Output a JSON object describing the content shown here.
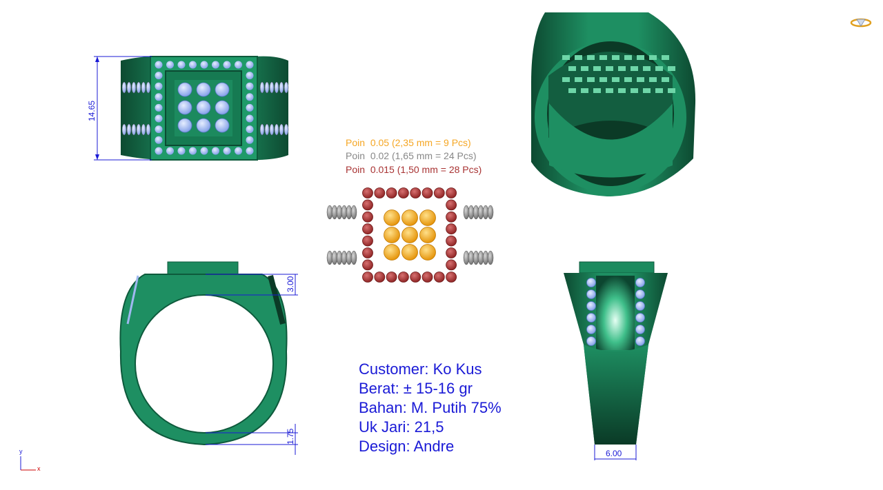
{
  "legend": [
    {
      "label": "Poin",
      "value": "0.05 (2,35 mm = 9 Pcs)",
      "color": "#f5a623"
    },
    {
      "label": "Poin",
      "value": "0.02 (1,65 mm = 24 Pcs)",
      "color": "#888888"
    },
    {
      "label": "Poin",
      "value": "0.015 (1,50 mm = 28 Pcs)",
      "color": "#a83232"
    }
  ],
  "info": {
    "customer": "Customer: Ko Kus",
    "berat": "Berat: ± 15-16 gr",
    "bahan": "Bahan: M. Putih 75%",
    "uk_jari": "Uk Jari: 21,5",
    "design": "Design: Andre"
  },
  "dimensions": {
    "height_top": "14.65",
    "top_thickness": "3.00",
    "bottom_thickness": "1.75",
    "side_width": "6.00"
  },
  "axis": {
    "y": "y",
    "x": "x"
  },
  "colors": {
    "metal": "#1e8f62",
    "metal_dark": "#0b3f2a",
    "stone": "#9fb8f0",
    "dimension": "#1a1ad6",
    "gold_stone": "#f5a623",
    "grey_stone": "#888888",
    "red_stone": "#a83232"
  },
  "icons": {
    "logo": "diamond-ring-icon"
  }
}
